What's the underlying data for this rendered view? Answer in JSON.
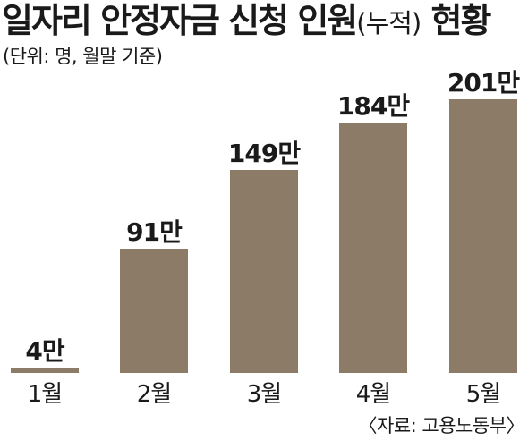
{
  "header": {
    "title_main": "일자리 안정자금 신청 인원",
    "title_paren": "(누적)",
    "title_end": " 현황",
    "subtitle": "(단위: 명, 월말 기준)"
  },
  "footer": {
    "source": "〈자료: 고용노동부〉"
  },
  "colors": {
    "bar": "#8c7b66",
    "text": "#1a1a1a",
    "background": "#ffffff"
  },
  "chart_data": {
    "type": "bar",
    "title": "일자리 안정자금 신청 인원(누적) 현황",
    "subtitle": "(단위: 명, 월말 기준)",
    "categories": [
      "1월",
      "2월",
      "3월",
      "4월",
      "5월"
    ],
    "values": [
      40000,
      910000,
      1490000,
      1840000,
      2010000
    ],
    "value_labels": [
      "4만",
      "91만",
      "149만",
      "184만",
      "201만"
    ],
    "unit": "명",
    "ylim": [
      0,
      2100000
    ],
    "grid": false,
    "legend": "none",
    "source": "〈자료: 고용노동부〉"
  }
}
